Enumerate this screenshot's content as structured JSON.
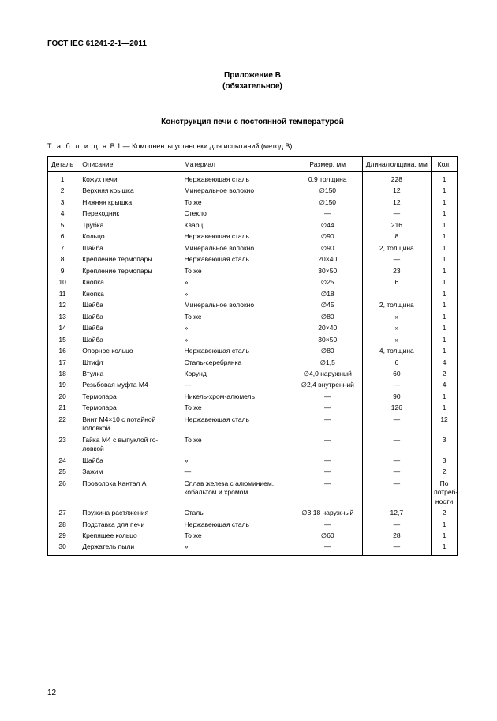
{
  "page": {
    "docHeader": "ГОСТ IEC 61241-2-1—2011",
    "annexTitle": "Приложение В",
    "annexNote": "(обязательное)",
    "sectionTitle": "Конструкция печи с постоянной температурой",
    "tableCaptionPrefix": "Т а б л и ц а",
    "tableCaptionRest": "  В.1 — Компоненты установки  для испытаний (метод В)",
    "pageNumber": "12",
    "columns": {
      "det": "Деталь",
      "desc": "Описание",
      "mat": "Материал",
      "size": "Размер. мм",
      "len": "Длина/толщина. мм",
      "qty": "Кол."
    },
    "rows": [
      {
        "n": "1",
        "desc": "Кожух печи",
        "mat": "Нержавеющая сталь",
        "size": "0,9 толщина",
        "len": "228",
        "qty": "1"
      },
      {
        "n": "2",
        "desc": "Верхняя крышка",
        "mat": "Минеральное волокно",
        "size": "∅150",
        "len": "12",
        "qty": "1"
      },
      {
        "n": "3",
        "desc": "Нижняя крышка",
        "mat": "То же",
        "size": "∅150",
        "len": "12",
        "qty": "1"
      },
      {
        "n": "4",
        "desc": "Переходник",
        "mat": "Стекло",
        "size": "—",
        "len": "—",
        "qty": "1"
      },
      {
        "n": "5",
        "desc": "Трубка",
        "mat": "Кварц",
        "size": "∅44",
        "len": "216",
        "qty": "1"
      },
      {
        "n": "6",
        "desc": "Кольцо",
        "mat": "Нержавеющая сталь",
        "size": "∅90",
        "len": "8",
        "qty": "1"
      },
      {
        "n": "7",
        "desc": "Шайба",
        "mat": "Минеральное волокно",
        "size": "∅90",
        "len": "2, толщина",
        "qty": "1"
      },
      {
        "n": "8",
        "desc": "Крепление термопары",
        "mat": "Нержавеющая сталь",
        "size": "20×40",
        "len": "—",
        "qty": "1"
      },
      {
        "n": "9",
        "desc": "Крепление термопары",
        "mat": "То же",
        "size": "30×50",
        "len": "23",
        "qty": "1"
      },
      {
        "n": "10",
        "desc": "Кнопка",
        "mat": "»",
        "size": "∅25",
        "len": "6",
        "qty": "1"
      },
      {
        "n": "11",
        "desc": "Кнопка",
        "mat": "»",
        "size": "∅18",
        "len": "",
        "qty": "1"
      },
      {
        "n": "12",
        "desc": "Шайба",
        "mat": "Минеральное волокно",
        "size": "∅45",
        "len": "2, толщина",
        "qty": "1"
      },
      {
        "n": "13",
        "desc": "Шайба",
        "mat": "То же",
        "size": "∅80",
        "len": "»",
        "qty": "1"
      },
      {
        "n": "14",
        "desc": "Шайба",
        "mat": "»",
        "size": "20×40",
        "len": "»",
        "qty": "1"
      },
      {
        "n": "15",
        "desc": "Шайба",
        "mat": "»",
        "size": "30×50",
        "len": "»",
        "qty": "1"
      },
      {
        "n": "16",
        "desc": "Опорное кольцо",
        "mat": "Нержавеющая сталь",
        "size": "∅80",
        "len": "4, толщина",
        "qty": "1"
      },
      {
        "n": "17",
        "desc": "Штифт",
        "mat": "Сталь-серебрянка",
        "size": "∅1,5",
        "len": "6",
        "qty": "4"
      },
      {
        "n": "18",
        "desc": "Втулка",
        "mat": "Корунд",
        "size": "∅4,0 наружный",
        "len": "60",
        "qty": "2"
      },
      {
        "n": "19",
        "desc": "Резьбовая муфта М4",
        "mat": "—",
        "size": "∅2,4 внутренний",
        "len": "—",
        "qty": "4"
      },
      {
        "n": "20",
        "desc": "Термопара",
        "mat": "Никель-хром-алюмель",
        "size": "—",
        "len": "90",
        "qty": "1"
      },
      {
        "n": "21",
        "desc": "Термопара",
        "mat": "То же",
        "size": "—",
        "len": "126",
        "qty": "1"
      },
      {
        "n": "22",
        "desc": "Винт М4×10 с потайной головкой",
        "mat": "Нержавеющая сталь",
        "size": "—",
        "len": "—",
        "qty": "12"
      },
      {
        "n": "23",
        "desc": "Гайка М4 с выпуклой го-\nловкой",
        "mat": "То же",
        "size": "—",
        "len": "—",
        "qty": "3"
      },
      {
        "n": "24",
        "desc": "Шайба",
        "mat": "»",
        "size": "—",
        "len": "—",
        "qty": "3"
      },
      {
        "n": "25",
        "desc": "Зажим",
        "mat": "—",
        "size": "—",
        "len": "—",
        "qty": "2"
      },
      {
        "n": "26",
        "desc": "Проволока Кантал А",
        "mat": "Сплав железа с алюминием, кобальтом и хромом",
        "size": "—",
        "len": "—",
        "qty": "По потреб-\nности"
      },
      {
        "n": "27",
        "desc": "Пружина растяжения",
        "mat": "Сталь",
        "size": "∅3,18 наружный",
        "len": "12,7",
        "qty": "2"
      },
      {
        "n": "28",
        "desc": "Подставка для печи",
        "mat": "Нержавеющая сталь",
        "size": "—",
        "len": "—",
        "qty": "1"
      },
      {
        "n": "29",
        "desc": "Крепящее кольцо",
        "mat": "То же",
        "size": "∅60",
        "len": "28",
        "qty": "1"
      },
      {
        "n": "30",
        "desc": "Держатель пыли",
        "mat": "»",
        "size": "—",
        "len": "—",
        "qty": "1"
      }
    ],
    "style": {
      "background_color": "#ffffff",
      "text_color": "#000000",
      "border_color": "#000000",
      "header_fontsize": 10,
      "body_fontsize": 8.5,
      "font_family": "Arial"
    }
  }
}
